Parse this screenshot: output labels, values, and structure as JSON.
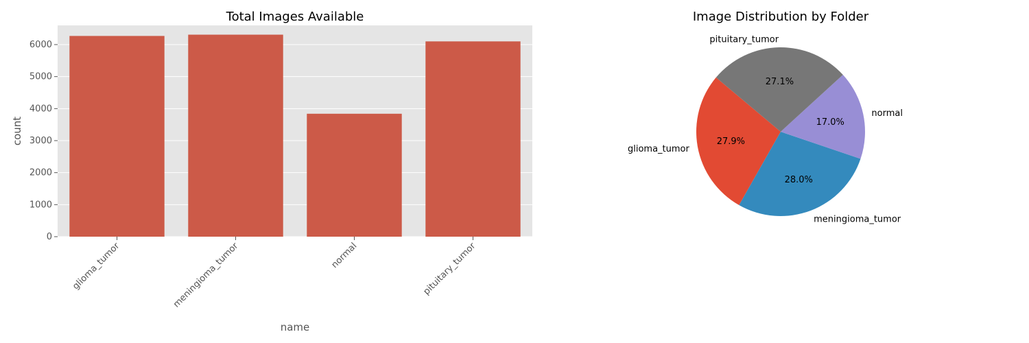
{
  "chart_data": [
    {
      "type": "bar",
      "title": "Total Images Available",
      "xlabel": "name",
      "ylabel": "count",
      "categories": [
        "glioma_tumor",
        "meningioma_tumor",
        "normal",
        "pituitary_tumor"
      ],
      "values": [
        6270,
        6310,
        3840,
        6100
      ],
      "ylim": [
        0,
        6600
      ],
      "yticks": [
        0,
        1000,
        2000,
        3000,
        4000,
        5000,
        6000
      ],
      "grid": true,
      "bar_color": "#cc5a48",
      "background_color": "#e5e5e5"
    },
    {
      "type": "pie",
      "title": "Image Distribution by Folder",
      "slices": [
        {
          "label": "glioma_tumor",
          "percent": 27.9,
          "pct_label": "27.9%",
          "color": "#e24a33"
        },
        {
          "label": "meningioma_tumor",
          "percent": 28.0,
          "pct_label": "28.0%",
          "color": "#348abd"
        },
        {
          "label": "normal",
          "percent": 17.0,
          "pct_label": "17.0%",
          "color": "#988ed5"
        },
        {
          "label": "pituitary_tumor",
          "percent": 27.1,
          "pct_label": "27.1%",
          "color": "#777777"
        }
      ]
    }
  ]
}
